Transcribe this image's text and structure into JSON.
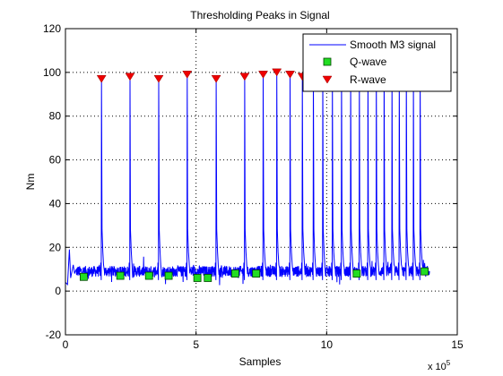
{
  "chart_data": {
    "type": "line",
    "title": "Thresholding Peaks in Signal",
    "xlabel": "Samples",
    "ylabel": "Nm",
    "x_multiplier_label": "x 10",
    "x_multiplier_exponent": "5",
    "xlim": [
      0,
      15
    ],
    "ylim": [
      -20,
      120
    ],
    "xticks": [
      0,
      5,
      10,
      15
    ],
    "yticks": [
      -20,
      0,
      20,
      40,
      60,
      80,
      100,
      120
    ],
    "grid": true,
    "legend_position": "top-right",
    "colors": {
      "signal": "#0000ff",
      "q_wave_fill": "#22dd22",
      "q_wave_edge": "#004400",
      "r_wave": "#ee0000",
      "grid": "#000000"
    },
    "series": [
      {
        "name": "Smooth M3 signal",
        "kind": "line",
        "baseline": 9,
        "spikes": [
          {
            "x": 1.38,
            "peak": 97
          },
          {
            "x": 2.47,
            "peak": 98
          },
          {
            "x": 3.57,
            "peak": 97
          },
          {
            "x": 4.66,
            "peak": 99
          },
          {
            "x": 5.77,
            "peak": 97
          },
          {
            "x": 6.86,
            "peak": 98
          },
          {
            "x": 7.57,
            "peak": 99
          },
          {
            "x": 8.09,
            "peak": 100
          },
          {
            "x": 8.6,
            "peak": 99
          },
          {
            "x": 9.07,
            "peak": 98
          },
          {
            "x": 9.49,
            "peak": 99
          },
          {
            "x": 9.85,
            "peak": 100
          },
          {
            "x": 10.22,
            "peak": 99
          },
          {
            "x": 10.57,
            "peak": 100
          },
          {
            "x": 10.92,
            "peak": 99
          },
          {
            "x": 11.25,
            "peak": 100
          },
          {
            "x": 11.58,
            "peak": 99
          },
          {
            "x": 11.9,
            "peak": 100
          },
          {
            "x": 12.2,
            "peak": 99
          },
          {
            "x": 12.5,
            "peak": 100
          },
          {
            "x": 12.78,
            "peak": 99
          },
          {
            "x": 13.05,
            "peak": 100
          },
          {
            "x": 13.32,
            "peak": 98
          },
          {
            "x": 13.58,
            "peak": 99
          }
        ]
      },
      {
        "name": "Q-wave",
        "kind": "marker",
        "marker": "square",
        "points": [
          {
            "x": 0.7,
            "y": 6.5
          },
          {
            "x": 2.1,
            "y": 7
          },
          {
            "x": 3.2,
            "y": 7
          },
          {
            "x": 3.95,
            "y": 7
          },
          {
            "x": 5.05,
            "y": 6
          },
          {
            "x": 5.45,
            "y": 6
          },
          {
            "x": 6.5,
            "y": 8
          },
          {
            "x": 7.3,
            "y": 8
          },
          {
            "x": 11.15,
            "y": 8
          },
          {
            "x": 13.75,
            "y": 9
          }
        ]
      },
      {
        "name": "R-wave",
        "kind": "marker",
        "marker": "triangle-down",
        "points": [
          {
            "x": 1.38,
            "y": 97
          },
          {
            "x": 2.47,
            "y": 98
          },
          {
            "x": 3.57,
            "y": 97
          },
          {
            "x": 4.66,
            "y": 99
          },
          {
            "x": 5.77,
            "y": 97
          },
          {
            "x": 6.86,
            "y": 98
          },
          {
            "x": 7.57,
            "y": 99
          },
          {
            "x": 8.09,
            "y": 100
          },
          {
            "x": 8.6,
            "y": 99
          },
          {
            "x": 9.07,
            "y": 98
          },
          {
            "x": 9.49,
            "y": 99
          }
        ]
      }
    ]
  }
}
